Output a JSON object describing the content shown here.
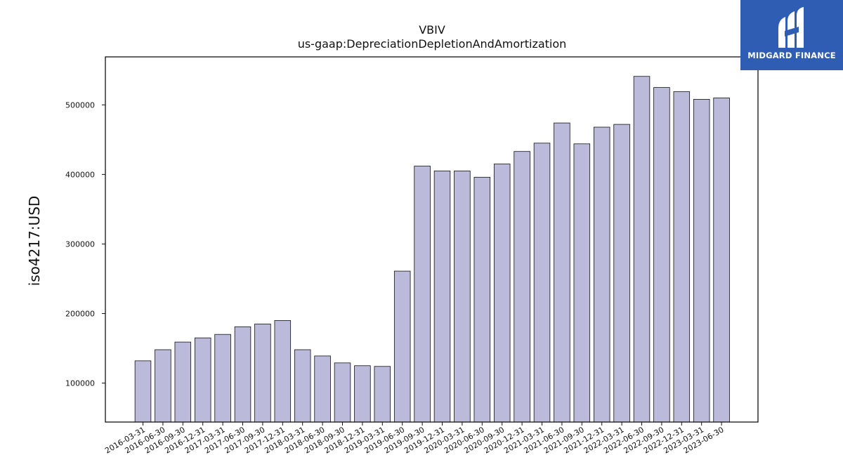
{
  "chart_data": {
    "type": "bar",
    "title": "VBIV",
    "subtitle": "us-gaap:DepreciationDepletionAndAmortization",
    "xlabel": "",
    "ylabel": "iso4217:USD",
    "categories": [
      "2016-03-31",
      "2016-06-30",
      "2016-09-30",
      "2016-12-31",
      "2017-03-31",
      "2017-06-30",
      "2017-09-30",
      "2017-12-31",
      "2018-03-31",
      "2018-06-30",
      "2018-09-30",
      "2018-12-31",
      "2019-03-31",
      "2019-06-30",
      "2019-09-30",
      "2019-12-31",
      "2020-03-31",
      "2020-06-30",
      "2020-09-30",
      "2020-12-31",
      "2021-03-31",
      "2021-06-30",
      "2021-09-30",
      "2021-12-31",
      "2022-03-31",
      "2022-06-30",
      "2022-09-30",
      "2022-12-31",
      "2023-03-31",
      "2023-06-30"
    ],
    "values": [
      132000,
      148000,
      159000,
      165000,
      170000,
      181000,
      185000,
      190000,
      148000,
      139000,
      129000,
      125000,
      124000,
      261000,
      412000,
      405000,
      405000,
      396000,
      415000,
      433000,
      445000,
      474000,
      444000,
      468000,
      472000,
      541000,
      525000,
      519000,
      508000,
      510000
    ],
    "yticks": [
      100000,
      200000,
      300000,
      400000,
      500000
    ],
    "ytick_labels": [
      "100000",
      "200000",
      "300000",
      "400000",
      "500000"
    ],
    "ylim": [
      44000,
      569000
    ],
    "grid": false,
    "colors": {
      "bar_fill": "#bcbadb",
      "bar_edge": "#111111",
      "axis": "#111111"
    }
  },
  "logo": {
    "text": "MIDGARD FINANCE",
    "background": "#2f5db3",
    "icon": "midgard-finance-logo-icon"
  }
}
